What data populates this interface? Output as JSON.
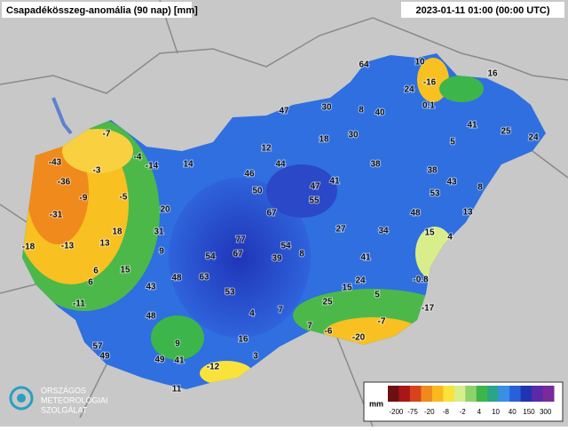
{
  "header": {
    "title": "Csapadékösszeg-anomália (90 nap) [mm]",
    "time": "2023-01-11 01:00 (00:00 UTC)"
  },
  "stations": [
    64,
    10,
    16,
    -16,
    24,
    0.1,
    47,
    30,
    8,
    40,
    41,
    25,
    24,
    -7,
    12,
    18,
    30,
    5,
    -43,
    -3,
    -4,
    -14,
    14,
    44,
    46,
    38,
    38,
    -36,
    50,
    47,
    41,
    43,
    53,
    8,
    -9,
    -5,
    55,
    20,
    67,
    48,
    13,
    -31,
    18,
    31,
    27,
    34,
    15,
    4,
    -18,
    -13,
    13,
    77,
    54,
    9,
    54,
    67,
    39,
    8,
    41,
    6,
    15,
    6,
    48,
    63,
    24,
    -0.8,
    43,
    53,
    15,
    5,
    -11,
    25,
    -17,
    4,
    7,
    48,
    7,
    -7,
    -6,
    -20,
    16,
    9,
    57,
    49,
    49,
    41,
    3,
    -12,
    11
  ],
  "legend": {
    "unit": "mm",
    "ticks": [
      -200,
      -75,
      -20,
      -8,
      -2,
      4,
      10,
      40,
      150,
      300
    ],
    "colors": [
      "#6e0f12",
      "#a8161a",
      "#d9431b",
      "#f08a1c",
      "#f8b81e",
      "#f9e23a",
      "#d8ee8a",
      "#8fd26b",
      "#3cb64a",
      "#2aa58a",
      "#3a8ee6",
      "#2a5fdc",
      "#2033b0",
      "#5a2aa8",
      "#7a2a9a"
    ]
  },
  "logo": {
    "line1": "ORSZÁGOS",
    "line2": "METEOROLÓGIAI",
    "line3": "SZOLGÁLAT"
  }
}
